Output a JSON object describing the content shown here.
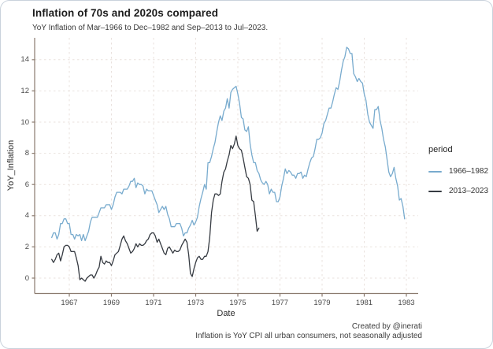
{
  "chart": {
    "title": "Inflation of 70s and 2020s compared",
    "subtitle": "YoY Inflation of Mar–1966 to Dec–1982 and Sep–2013 to Jul–2023.",
    "x_label": "Date",
    "y_label": "YoY_Inflation",
    "legend_title": "period",
    "caption_line1": "Created by @inerati",
    "caption_line2": "Inflation is YoY CPI all urban consumers, not seasonally adjusted"
  },
  "chart_data": {
    "type": "line",
    "title": "Inflation of 70s and 2020s compared",
    "subtitle": "YoY Inflation of Mar–1966 to Dec–1982 and Sep–2013 to Jul–2023.",
    "xlabel": "Date",
    "ylabel": "YoY_Inflation",
    "x_ticks": [
      1967,
      1969,
      1971,
      1973,
      1975,
      1977,
      1979,
      1981,
      1983
    ],
    "y_ticks": [
      0,
      2,
      4,
      6,
      8,
      10,
      12,
      14
    ],
    "xlim": [
      1965.3,
      1983.6
    ],
    "ylim": [
      -1.0,
      15.4
    ],
    "grid": "dashed-major",
    "legend_title": "period",
    "legend_position": "right",
    "x_unit": "monthly (second series time-shifted so Sep-2013 aligns with Mar-1966)",
    "series": [
      {
        "name": "1966–1982",
        "color": "#78abce",
        "start_label": "Mar-1966",
        "plot_start_x": 1966.167,
        "values": [
          2.6,
          2.9,
          2.9,
          2.5,
          2.8,
          3.5,
          3.5,
          3.8,
          3.8,
          3.5,
          3.5,
          2.8,
          2.8,
          2.5,
          2.8,
          2.7,
          2.8,
          2.4,
          2.8,
          2.4,
          2.7,
          3.0,
          3.6,
          3.9,
          3.9,
          3.9,
          3.9,
          4.2,
          4.5,
          4.5,
          4.5,
          4.7,
          4.7,
          4.7,
          4.4,
          4.7,
          5.2,
          5.5,
          5.5,
          5.5,
          5.4,
          5.7,
          5.7,
          5.7,
          5.9,
          6.2,
          6.2,
          6.4,
          5.8,
          6.1,
          6.0,
          6.0,
          5.9,
          5.4,
          5.7,
          5.6,
          5.6,
          5.6,
          5.3,
          5.0,
          4.7,
          4.2,
          4.4,
          4.6,
          4.4,
          4.6,
          4.1,
          3.8,
          3.3,
          3.3,
          3.3,
          3.5,
          3.5,
          3.5,
          3.2,
          2.7,
          2.9,
          2.9,
          3.2,
          3.4,
          3.7,
          3.4,
          3.6,
          3.9,
          4.6,
          5.1,
          5.5,
          6.0,
          5.7,
          7.4,
          7.4,
          7.8,
          8.3,
          8.7,
          9.4,
          10.0,
          10.4,
          10.1,
          10.7,
          10.9,
          11.5,
          10.9,
          11.9,
          12.1,
          12.2,
          12.3,
          11.8,
          11.2,
          10.3,
          10.2,
          9.5,
          9.4,
          9.7,
          8.6,
          7.9,
          7.4,
          7.4,
          6.9,
          6.7,
          6.3,
          6.1,
          6.0,
          6.2,
          6.0,
          5.4,
          5.7,
          5.5,
          5.5,
          4.9,
          4.9,
          5.2,
          5.9,
          6.4,
          7.0,
          6.7,
          6.9,
          6.8,
          6.6,
          6.6,
          6.4,
          6.7,
          6.7,
          6.8,
          6.4,
          6.6,
          6.5,
          7.0,
          7.4,
          7.7,
          7.8,
          8.3,
          8.9,
          8.9,
          9.0,
          9.3,
          9.9,
          10.1,
          10.5,
          10.9,
          10.9,
          11.3,
          11.8,
          12.2,
          12.1,
          12.6,
          13.3,
          13.9,
          14.2,
          14.8,
          14.7,
          14.4,
          14.4,
          13.1,
          12.9,
          12.6,
          12.8,
          12.6,
          12.5,
          11.8,
          11.4,
          10.5,
          10.0,
          9.8,
          9.6,
          10.8,
          10.8,
          11.0,
          10.1,
          9.6,
          8.9,
          8.4,
          7.6,
          6.8,
          6.5,
          6.7,
          7.1,
          6.4,
          5.9,
          5.0,
          5.1,
          4.6,
          3.8
        ]
      },
      {
        "name": "2013–2023",
        "color": "#363b42",
        "start_label": "Sep-2013",
        "plot_start_x": 1966.167,
        "values": [
          1.2,
          1.0,
          1.2,
          1.5,
          1.6,
          1.1,
          1.5,
          2.0,
          2.1,
          2.1,
          2.0,
          1.7,
          1.7,
          1.7,
          1.3,
          0.8,
          -0.1,
          0.0,
          -0.1,
          -0.2,
          0.0,
          0.1,
          0.2,
          0.2,
          0.0,
          0.2,
          0.5,
          0.7,
          1.4,
          1.0,
          0.9,
          1.1,
          1.0,
          1.0,
          0.8,
          1.1,
          1.5,
          1.6,
          1.7,
          2.1,
          2.5,
          2.7,
          2.4,
          2.2,
          1.9,
          1.6,
          1.7,
          1.9,
          2.2,
          2.0,
          2.2,
          2.1,
          2.1,
          2.2,
          2.4,
          2.5,
          2.8,
          2.9,
          2.9,
          2.7,
          2.3,
          2.5,
          2.2,
          1.9,
          1.6,
          1.5,
          1.9,
          2.0,
          1.8,
          1.6,
          1.8,
          1.7,
          1.7,
          1.8,
          2.1,
          2.3,
          2.5,
          2.3,
          1.5,
          0.3,
          0.1,
          0.6,
          1.0,
          1.3,
          1.4,
          1.2,
          1.2,
          1.4,
          1.4,
          1.7,
          2.6,
          4.2,
          5.0,
          5.4,
          5.4,
          5.3,
          5.4,
          6.2,
          6.8,
          7.0,
          7.5,
          7.9,
          8.5,
          8.3,
          8.6,
          9.1,
          8.5,
          8.3,
          8.2,
          7.7,
          7.1,
          6.5,
          6.4,
          6.0,
          5.0,
          4.9,
          4.0,
          3.0,
          3.2
        ]
      }
    ]
  },
  "colors": {
    "axis_line": "#8a7a6e",
    "gridline": "#eae2de",
    "card_border": "#c9d2dc",
    "series_1966": "#78abce",
    "series_2013": "#363b42"
  }
}
